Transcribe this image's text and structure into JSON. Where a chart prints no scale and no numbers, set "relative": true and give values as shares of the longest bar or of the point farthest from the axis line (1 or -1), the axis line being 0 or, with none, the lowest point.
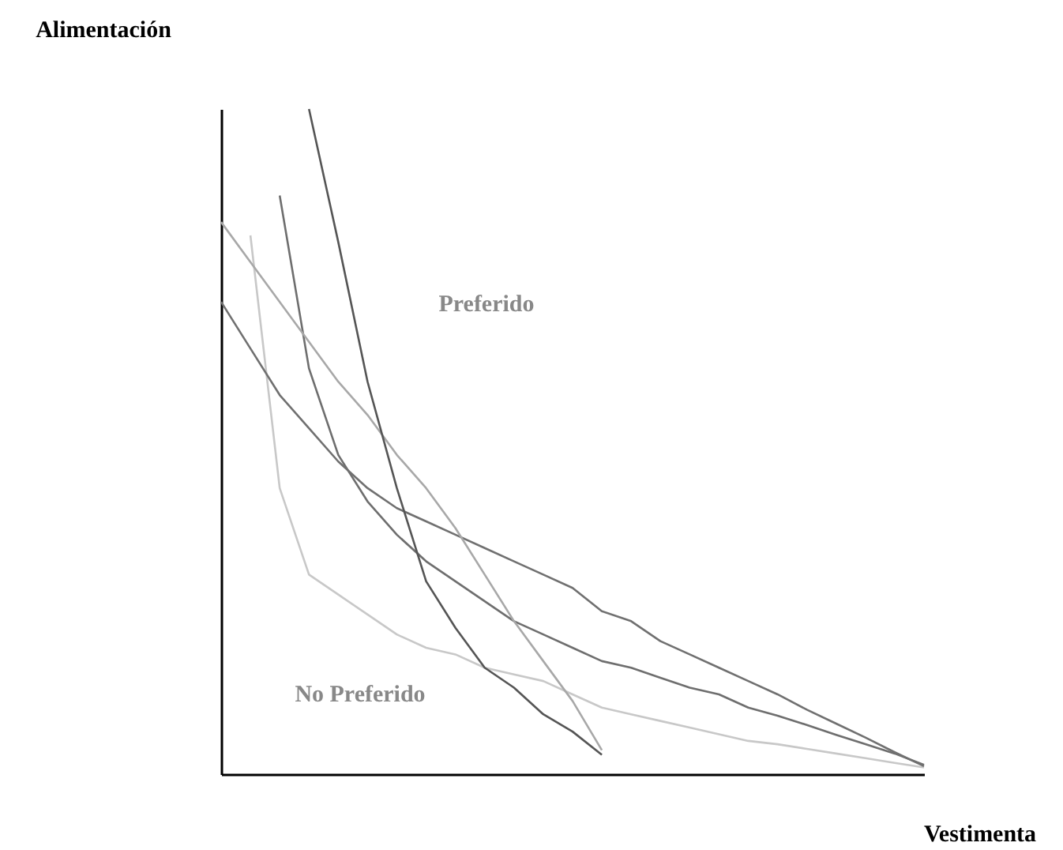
{
  "chart_data": {
    "type": "line",
    "relative": true,
    "xlabel": "Vestimenta",
    "ylabel": "Alimentación",
    "annotations": [
      "Preferido",
      "No Preferido"
    ],
    "categories": [
      null,
      null,
      null,
      null,
      null,
      null,
      null,
      null,
      null,
      null,
      null,
      null,
      null,
      null,
      null,
      null,
      null,
      null,
      null,
      null,
      null,
      null,
      null,
      null,
      null
    ],
    "series": [
      {
        "color": "#c8c8c8",
        "values": [
          null,
          0.81,
          0.43,
          0.3,
          0.27,
          0.24,
          0.21,
          0.19,
          0.18,
          0.16,
          0.15,
          0.14,
          0.12,
          0.1,
          0.09,
          0.08,
          0.07,
          0.06,
          0.05,
          0.045,
          0.038,
          0.031,
          0.024,
          0.017,
          0.01
        ]
      },
      {
        "color": "#6e6e6e",
        "values": [
          null,
          null,
          0.87,
          0.61,
          0.48,
          0.41,
          0.36,
          0.32,
          0.29,
          0.26,
          0.23,
          0.21,
          0.19,
          0.17,
          0.16,
          0.145,
          0.13,
          0.12,
          0.1,
          0.088,
          0.074,
          0.059,
          0.045,
          0.031,
          0.014
        ]
      },
      {
        "color": "#707070",
        "values": [
          0.71,
          0.64,
          0.57,
          0.52,
          0.47,
          0.43,
          0.4,
          0.38,
          0.36,
          0.34,
          0.32,
          0.3,
          0.28,
          0.245,
          0.23,
          0.2,
          0.18,
          0.16,
          0.14,
          0.12,
          0.097,
          0.076,
          0.055,
          0.033,
          0.012
        ]
      },
      {
        "color": "#a8a8a8",
        "values": [
          0.83,
          0.77,
          0.71,
          0.65,
          0.59,
          0.54,
          0.48,
          0.43,
          0.37,
          0.3,
          0.23,
          0.17,
          0.11,
          0.036,
          null,
          null,
          null,
          null,
          null,
          null,
          null,
          null,
          null,
          null,
          null
        ]
      },
      {
        "color": "#555555",
        "values": [
          null,
          null,
          null,
          1,
          0.8,
          0.59,
          0.43,
          0.29,
          0.22,
          0.16,
          0.13,
          0.09,
          0.064,
          0.029,
          null,
          null,
          null,
          null,
          null,
          null,
          null,
          null,
          null,
          null,
          null
        ]
      }
    ]
  }
}
